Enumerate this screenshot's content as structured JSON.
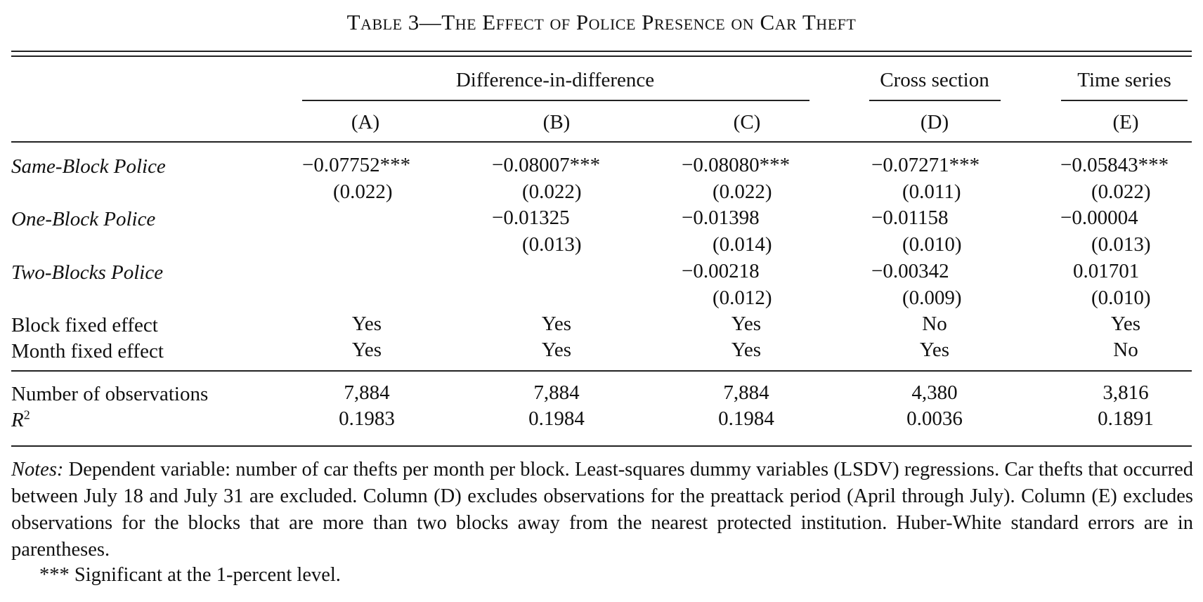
{
  "title": "Table 3—The Effect of Police Presence on Car Theft",
  "groups": {
    "did": "Difference-in-difference",
    "cross": "Cross section",
    "time": "Time series"
  },
  "columns": [
    "(A)",
    "(B)",
    "(C)",
    "(D)",
    "(E)"
  ],
  "rows": {
    "same_block": {
      "label": "Same-Block Police",
      "coef": [
        "−0.07752***",
        "−0.08007***",
        "−0.08080***",
        "−0.07271***",
        "−0.05843***"
      ],
      "se": [
        "(0.022)",
        "(0.022)",
        "(0.022)",
        "(0.011)",
        "(0.022)"
      ]
    },
    "one_block": {
      "label": "One-Block Police",
      "coef": [
        "",
        "−0.01325",
        "−0.01398",
        "−0.01158",
        "−0.00004"
      ],
      "se": [
        "",
        "(0.013)",
        "(0.014)",
        "(0.010)",
        "(0.013)"
      ]
    },
    "two_blocks": {
      "label": "Two-Blocks Police",
      "coef": [
        "",
        "",
        "−0.00218",
        "−0.00342",
        "0.01701"
      ],
      "se": [
        "",
        "",
        "(0.012)",
        "(0.009)",
        "(0.010)"
      ]
    },
    "block_fe": {
      "label": "Block fixed effect",
      "values": [
        "Yes",
        "Yes",
        "Yes",
        "No",
        "Yes"
      ]
    },
    "month_fe": {
      "label": "Month fixed effect",
      "values": [
        "Yes",
        "Yes",
        "Yes",
        "Yes",
        "No"
      ]
    },
    "n_obs": {
      "label": "Number of observations",
      "values": [
        "7,884",
        "7,884",
        "7,884",
        "4,380",
        "3,816"
      ]
    },
    "r2": {
      "label_base": "R",
      "label_sup": "2",
      "values": [
        "0.1983",
        "0.1984",
        "0.1984",
        "0.0036",
        "0.1891"
      ]
    }
  },
  "notes": {
    "label": "Notes:",
    "text": "Dependent variable: number of car thefts per month per block. Least-squares dummy variables (LSDV) regressions. Car thefts that occurred between July 18 and July 31 are excluded. Column (D) excludes observations for the preattack period (April through July). Column (E) excludes observations for the blocks that are more than two blocks away from the nearest protected institution. Huber-White standard errors are in parentheses.",
    "significance": "*** Significant at the 1-percent level."
  }
}
